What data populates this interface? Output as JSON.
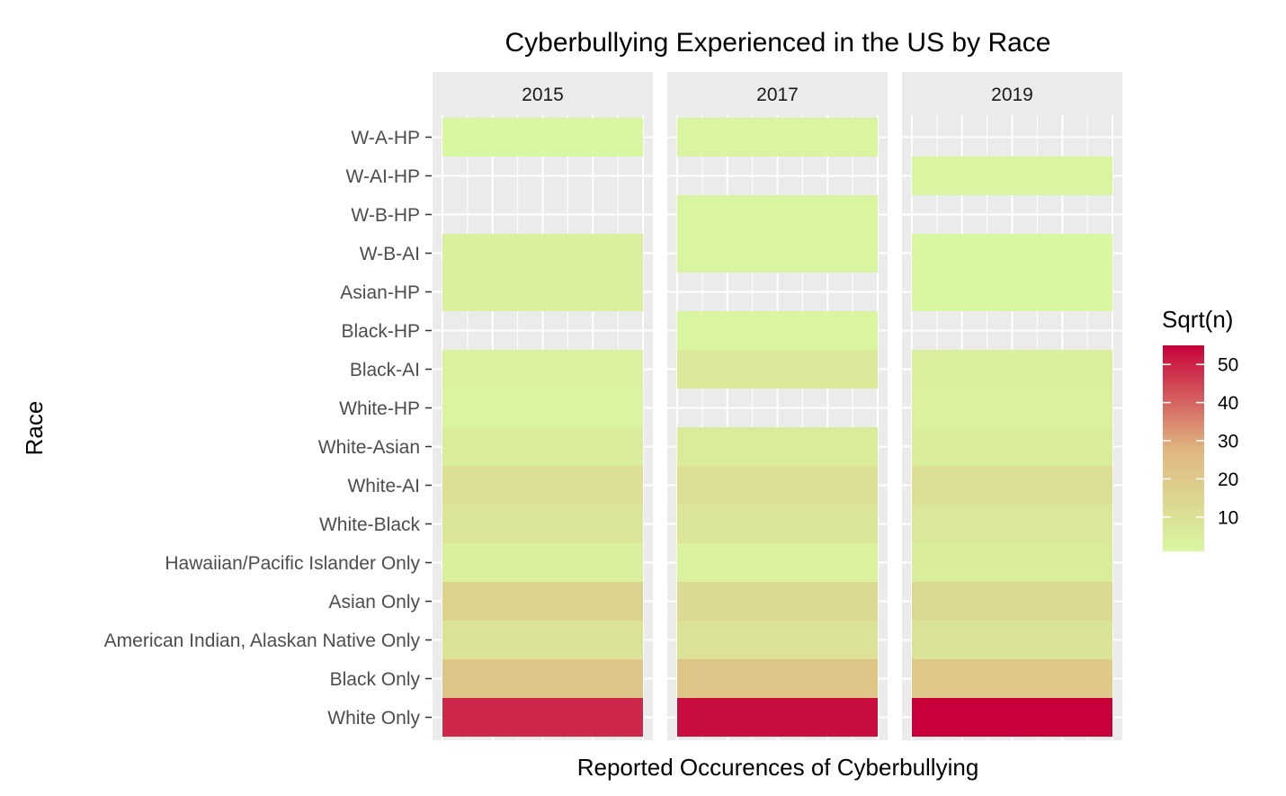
{
  "chart_data": {
    "type": "heatmap",
    "title": "Cyberbullying Experienced in the US by Race",
    "xlabel": "Reported Occurences of Cyberbullying",
    "ylabel": "Race",
    "facets": [
      "2015",
      "2017",
      "2019"
    ],
    "categories": [
      "W-A-HP",
      "W-AI-HP",
      "W-B-HP",
      "W-B-AI",
      "Asian-HP",
      "Black-HP",
      "Black-AI",
      "White-HP",
      "White-Asian",
      "White-AI",
      "White-Black",
      "Hawaiian/Pacific Islander Only",
      "Asian Only",
      "American Indian, Alaskan Native Only",
      "Black Only",
      "White Only"
    ],
    "series": [
      {
        "name": "2015",
        "values": [
          1,
          null,
          null,
          4,
          4,
          null,
          3,
          2,
          5,
          11,
          8,
          4,
          16,
          9,
          21,
          49
        ]
      },
      {
        "name": "2017",
        "values": [
          2,
          null,
          2,
          2,
          null,
          2,
          7,
          null,
          6,
          11,
          8,
          3,
          13,
          10,
          22,
          53
        ]
      },
      {
        "name": "2019",
        "values": [
          null,
          2,
          null,
          1,
          1,
          null,
          4,
          3,
          5,
          11,
          7,
          5,
          13,
          9,
          20,
          55
        ]
      }
    ],
    "legend": {
      "title": "Sqrt(n)",
      "ticks": [
        10,
        20,
        30,
        40,
        50
      ],
      "range": [
        1,
        55
      ],
      "low_color": "#d9f7a0",
      "mid_color": "#e0b580",
      "high_color": "#c8003a",
      "placement": "right"
    },
    "panel_background": "#ebebeb",
    "grid": true
  }
}
